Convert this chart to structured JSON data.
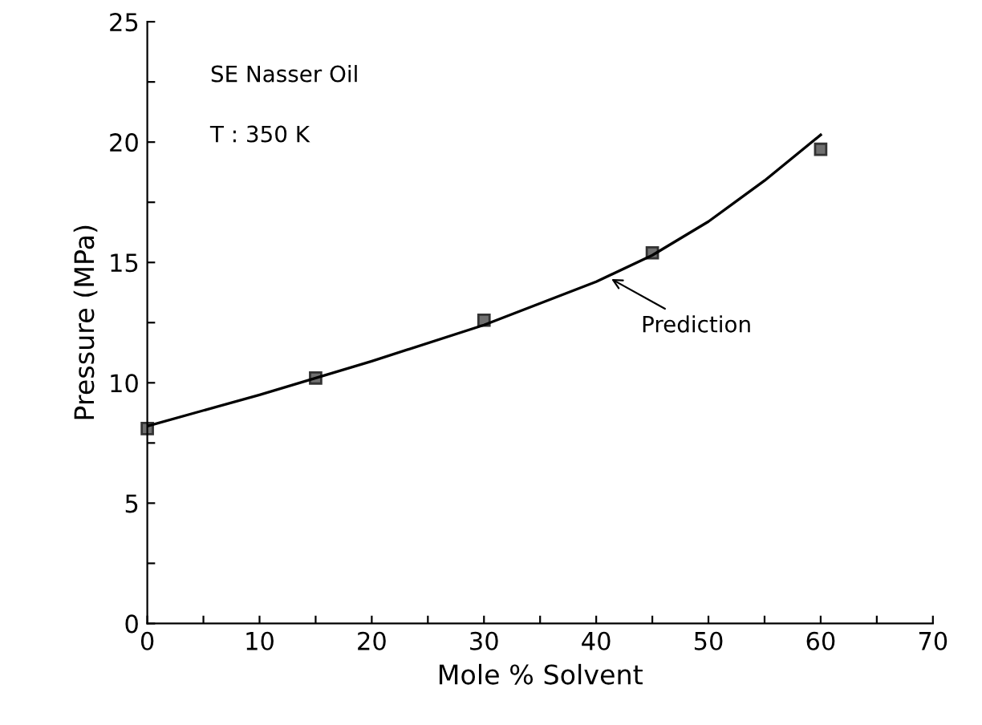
{
  "chart_data": {
    "type": "scatter",
    "xlabel": "Mole % Solvent",
    "ylabel": "Pressure (MPa)",
    "xlim": [
      0,
      70
    ],
    "ylim": [
      0,
      25
    ],
    "xticks": [
      0,
      {
        "value": 5,
        "label": null
      },
      10,
      {
        "value": 15,
        "label": null
      },
      20,
      {
        "value": 25,
        "label": null
      },
      30,
      {
        "value": 35,
        "label": null
      },
      40,
      {
        "value": 45,
        "label": null
      },
      50,
      {
        "value": 55,
        "label": null
      },
      60,
      {
        "value": 65,
        "label": null
      },
      70
    ],
    "yticks": [
      0,
      {
        "value": 2.5,
        "label": null
      },
      5,
      {
        "value": 7.5,
        "label": null
      },
      10,
      {
        "value": 12.5,
        "label": null
      },
      15,
      {
        "value": 17.5,
        "label": null
      },
      20,
      {
        "value": 22.5,
        "label": null
      },
      25
    ],
    "grid": false,
    "legend": false,
    "series": [
      {
        "marker": "square",
        "color": "#707070",
        "x": [
          0,
          15,
          30,
          45,
          60
        ],
        "values": [
          8.1,
          10.2,
          12.6,
          15.4,
          19.7
        ]
      },
      {
        "type": "line",
        "marker": "none",
        "line_style": "solid",
        "color": "#000000",
        "x": [
          0,
          10,
          20,
          30,
          40,
          45,
          50,
          55,
          60
        ],
        "values": [
          8.2,
          9.5,
          10.9,
          12.4,
          14.2,
          15.3,
          16.7,
          18.4,
          20.3
        ]
      }
    ],
    "annotations": [
      "SE Nasser Oil",
      "T : 350 K",
      {
        "text": "Prediction",
        "x": 41,
        "y": 14.4
      }
    ]
  }
}
